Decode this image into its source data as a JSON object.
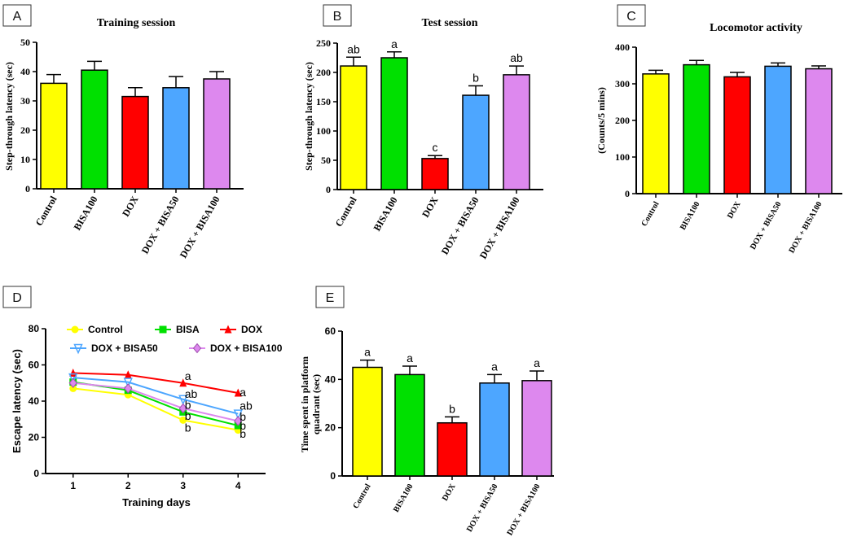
{
  "colors": {
    "Control": "#ffff00",
    "BISA100": "#00e000",
    "DOX": "#ff0000",
    "DOX + BISA50": "#4da6ff",
    "DOX + BISA100": "#dd88ee"
  },
  "chart_data": [
    {
      "id": "A",
      "panel_label": "A",
      "type": "bar",
      "title": "Training session",
      "ylabel": "Step-through latency (sec)",
      "xlabel": "",
      "categories": [
        "Control",
        "BISA100",
        "DOX",
        "DOX + BISA50",
        "DOX + BISA100"
      ],
      "values": [
        36,
        40.5,
        31.5,
        34.5,
        37.5
      ],
      "errors": [
        3,
        3,
        3,
        3.8,
        2.5
      ],
      "sig_labels": [
        "",
        "",
        "",
        "",
        ""
      ],
      "ylim": [
        0,
        50
      ],
      "yticks": [
        0,
        10,
        20,
        30,
        40,
        50
      ]
    },
    {
      "id": "B",
      "panel_label": "B",
      "type": "bar",
      "title": "Test session",
      "ylabel": "Step-through latency (sec)",
      "xlabel": "",
      "categories": [
        "Control",
        "BISA100",
        "DOX",
        "DOX + BISA50",
        "DOX + BISA100"
      ],
      "values": [
        211,
        225,
        53,
        161,
        196
      ],
      "errors": [
        15,
        10,
        5,
        16,
        15
      ],
      "sig_labels": [
        "ab",
        "a",
        "c",
        "b",
        "ab"
      ],
      "ylim": [
        0,
        250
      ],
      "yticks": [
        0,
        50,
        100,
        150,
        200,
        250
      ]
    },
    {
      "id": "C",
      "panel_label": "C",
      "type": "bar",
      "title": "Locomotor activity",
      "ylabel": "(Counts/5 mins)",
      "xlabel": "",
      "categories": [
        "Control",
        "BISA100",
        "DOX",
        "DOX + BISA50",
        "DOX + BISA100"
      ],
      "values": [
        327,
        352,
        319,
        348,
        341
      ],
      "errors": [
        10,
        12,
        12,
        9,
        8
      ],
      "sig_labels": [
        "",
        "",
        "",
        "",
        ""
      ],
      "ylim": [
        0,
        400
      ],
      "yticks": [
        0,
        100,
        200,
        300,
        400
      ]
    },
    {
      "id": "D",
      "panel_label": "D",
      "type": "line",
      "title": "",
      "xlabel": "Training days",
      "ylabel": "Escape latency (sec)",
      "x": [
        1,
        2,
        3,
        4
      ],
      "xlim": [
        0.5,
        4.5
      ],
      "ylim": [
        0,
        80
      ],
      "yticks": [
        0,
        20,
        40,
        60,
        80
      ],
      "series": [
        {
          "name": "Control",
          "color": "#ffff00",
          "marker": "circle",
          "values": [
            47,
            43.5,
            29.5,
            24
          ]
        },
        {
          "name": "BISA",
          "color": "#00e000",
          "marker": "square",
          "values": [
            50.5,
            46,
            34,
            26.5
          ]
        },
        {
          "name": "DOX",
          "color": "#ff0000",
          "marker": "triangle",
          "values": [
            55.5,
            54.5,
            50,
            44.5
          ]
        },
        {
          "name": "DOX + BISA50",
          "color": "#4da6ff",
          "marker": "triangle-down",
          "values": [
            53,
            50.5,
            41,
            33
          ]
        },
        {
          "name": "DOX + BISA100",
          "color": "#dd88ee",
          "marker": "diamond",
          "values": [
            50,
            47,
            36,
            29
          ]
        }
      ],
      "annotations": [
        {
          "x": 3,
          "y": 53.5,
          "text": "a"
        },
        {
          "x": 3,
          "y": 43.5,
          "text": "ab"
        },
        {
          "x": 3,
          "y": 37.5,
          "text": "b"
        },
        {
          "x": 3,
          "y": 31.5,
          "text": "b"
        },
        {
          "x": 3,
          "y": 25,
          "text": "b"
        },
        {
          "x": 4,
          "y": 44.5,
          "text": "a"
        },
        {
          "x": 4,
          "y": 37,
          "text": "ab"
        },
        {
          "x": 4,
          "y": 31,
          "text": "b"
        },
        {
          "x": 4,
          "y": 26,
          "text": "b"
        },
        {
          "x": 4,
          "y": 21.5,
          "text": "b"
        }
      ]
    },
    {
      "id": "E",
      "panel_label": "E",
      "type": "bar",
      "title": "",
      "ylabel": "Time spent in platform quadrant (sec)",
      "ylabel_lines": [
        "Time spent in platform",
        "quadrant (sec)"
      ],
      "xlabel": "",
      "categories": [
        "Control",
        "BISA100",
        "DOX",
        "DOX + BISA50",
        "DOX + BISA100"
      ],
      "values": [
        45,
        42,
        22,
        38.5,
        39.5
      ],
      "errors": [
        3,
        3.5,
        2.5,
        3.5,
        4
      ],
      "sig_labels": [
        "a",
        "a",
        "b",
        "a",
        "a"
      ],
      "ylim": [
        0,
        60
      ],
      "yticks": [
        0,
        20,
        40,
        60
      ]
    }
  ]
}
